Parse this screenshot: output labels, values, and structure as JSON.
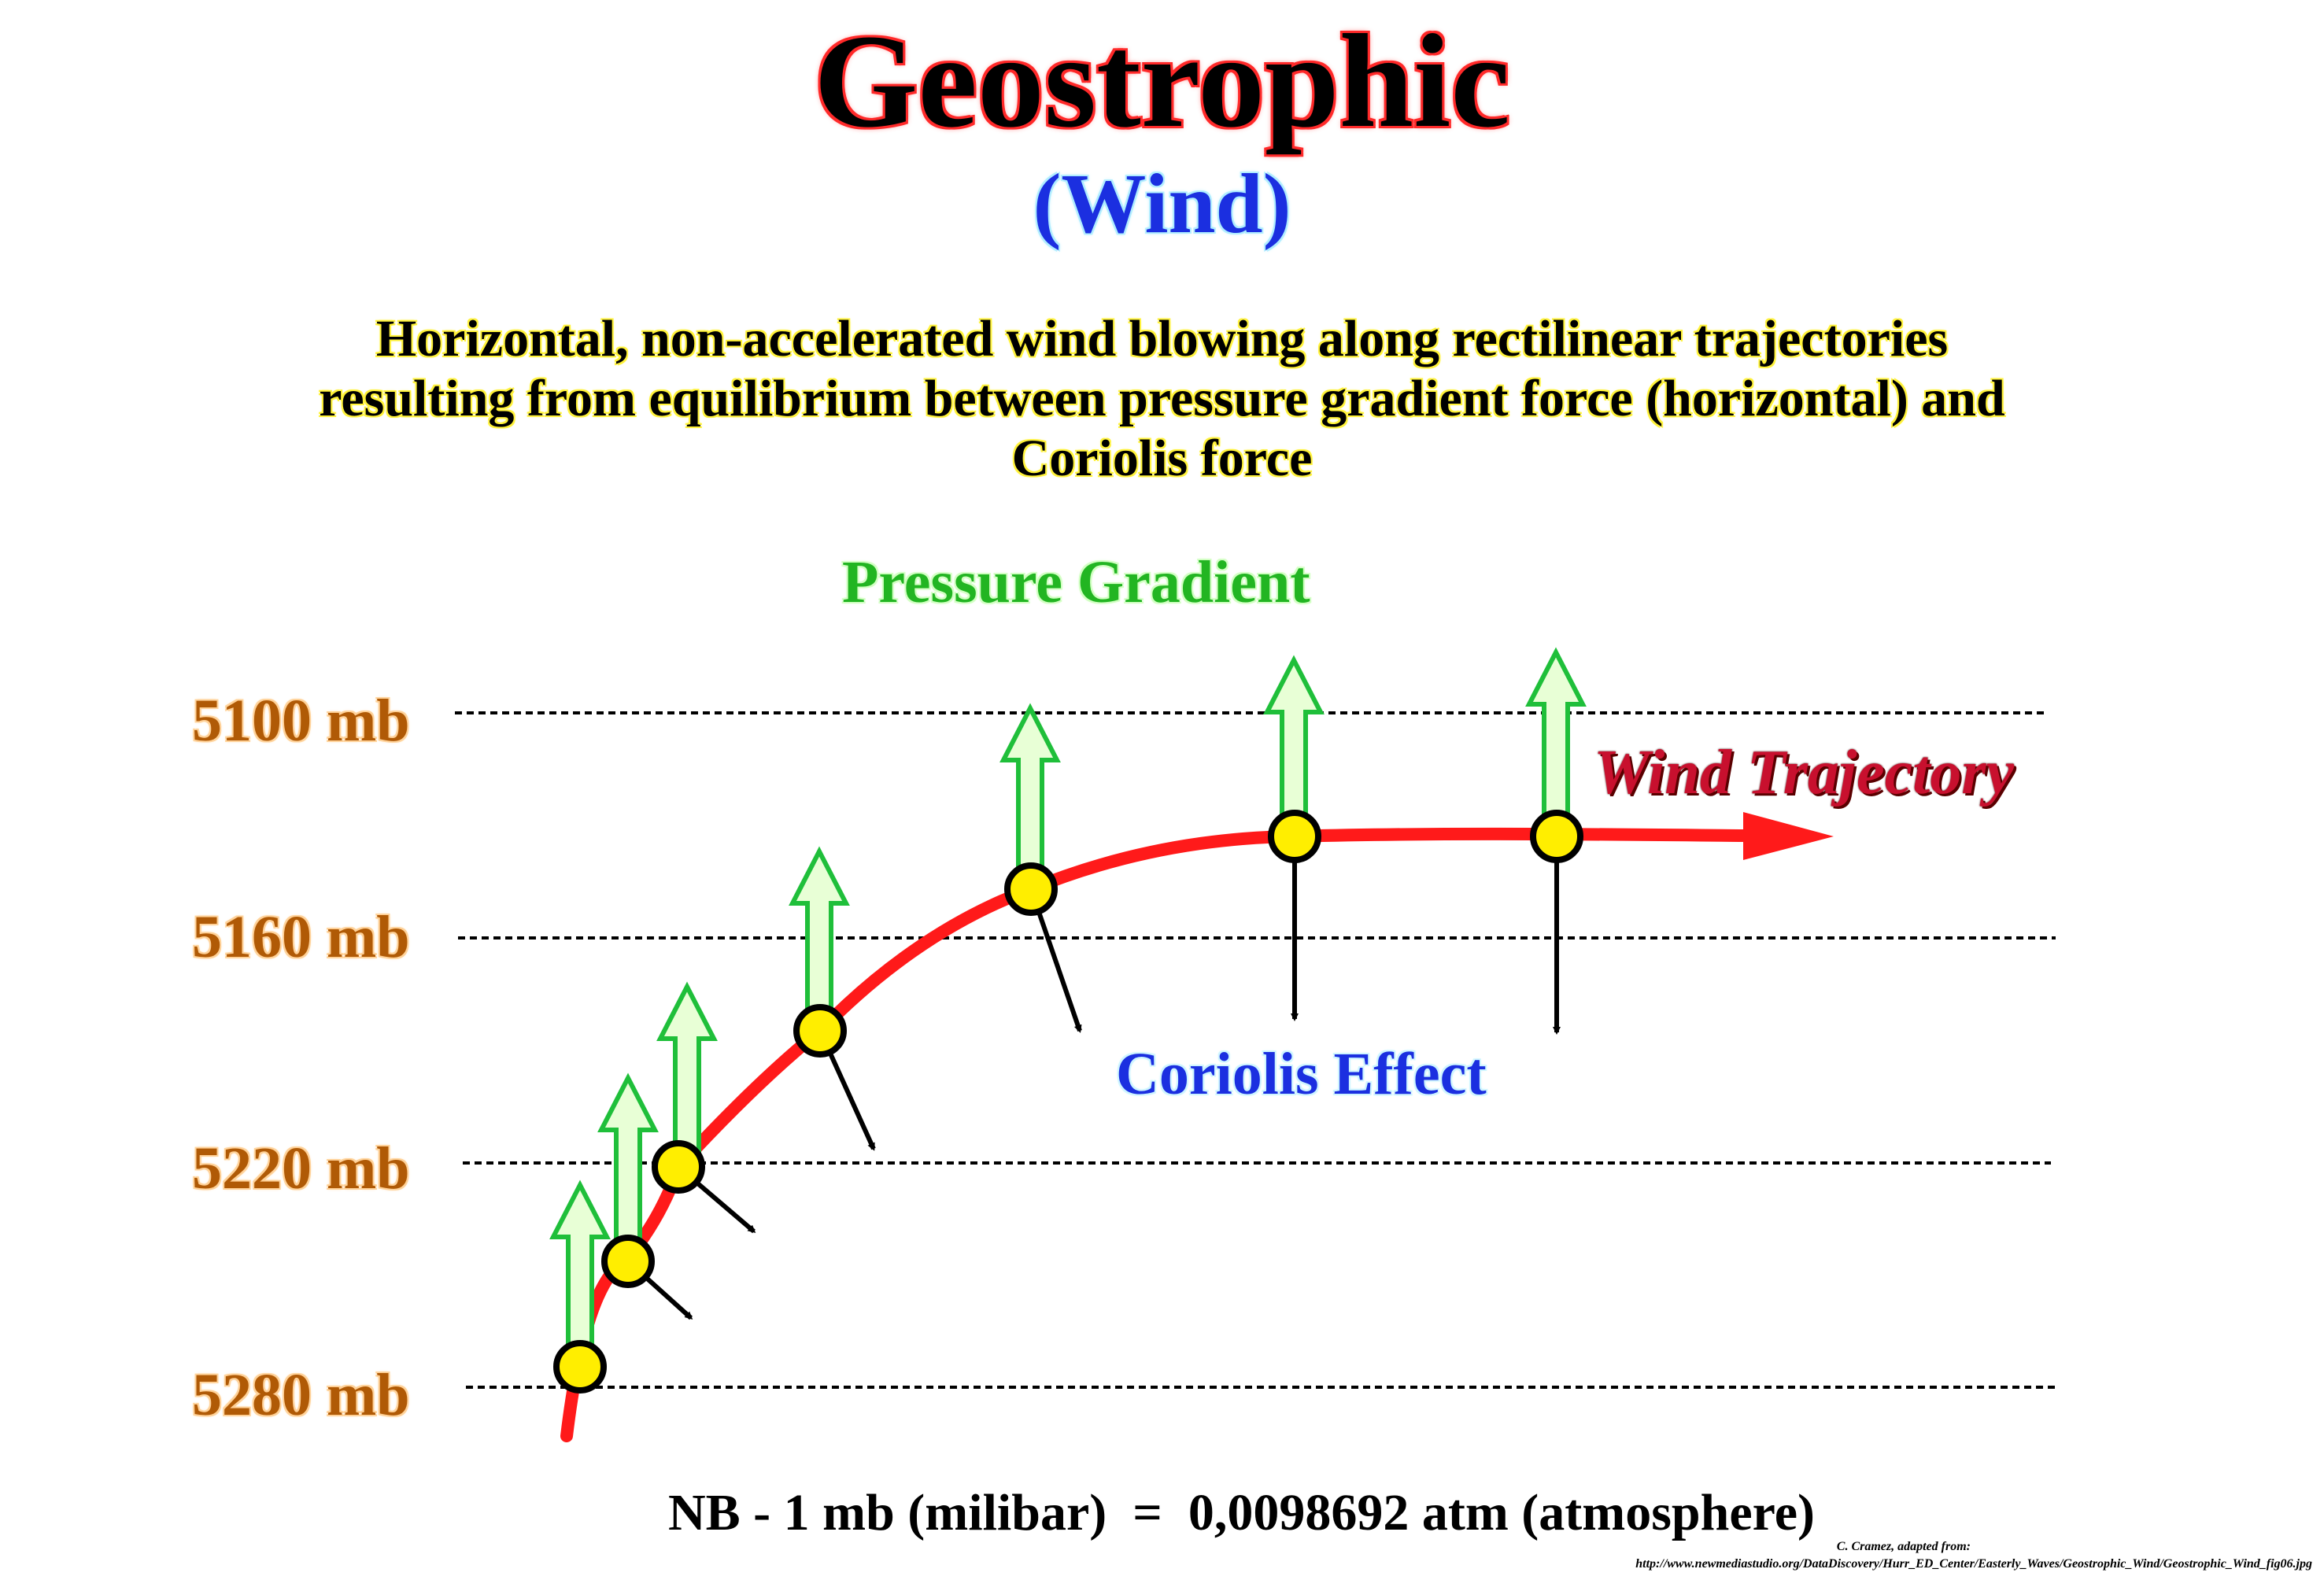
{
  "title": "Geostrophic",
  "subtitle": "(Wind)",
  "description": [
    "Horizontal, non-accelerated wind blowing along rectilinear trajectories",
    "resulting from equilibrium between pressure gradient force (horizontal) and",
    "Coriolis force"
  ],
  "isobars": [
    {
      "label": "5100 mb"
    },
    {
      "label": "5160 mb"
    },
    {
      "label": "5220 mb"
    },
    {
      "label": "5280 mb"
    }
  ],
  "labels": {
    "pressure_gradient": "Pressure Gradient",
    "coriolis_effect": "Coriolis Effect",
    "wind_trajectory": "Wind Trajectory"
  },
  "note": "NB - 1 mb (milibar)  =  0,0098692 atm (atmosphere)",
  "credit": {
    "line1": "C. Cramez, adapted from:",
    "line2": "http://www.newmediastudio.org/DataDiscovery/Hurr_ED_Center/Easterly_Waves/Geostrophic_Wind/Geostrophic_Wind_fig06.jpg"
  },
  "colors": {
    "trajectory": "#ff1a1a",
    "pressure_arrow_stroke": "#1fbf3a",
    "pressure_arrow_fill": "#e8ffd6",
    "coriolis_arrow": "#000000",
    "parcel_fill": "#ffee00",
    "pressure_label": "#b05a06"
  }
}
